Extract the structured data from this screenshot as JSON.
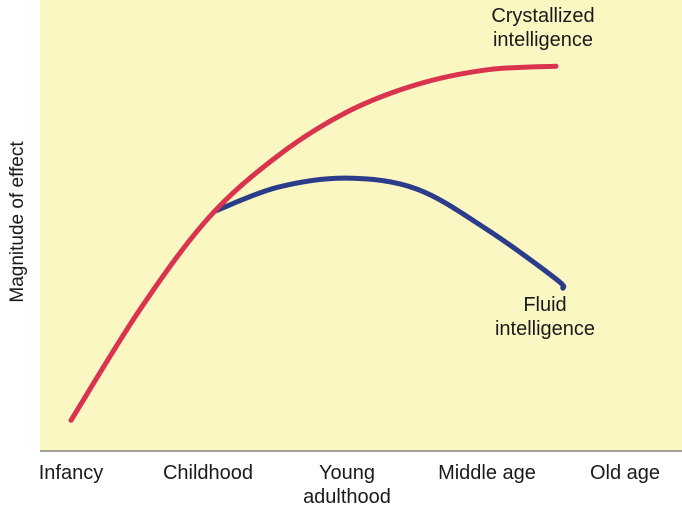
{
  "chart_data": {
    "type": "line",
    "title": "",
    "xlabel": "",
    "ylabel": "Magnitude of effect",
    "categories": [
      "Infancy",
      "Childhood",
      "Young adulthood",
      "Middle age",
      "Old age"
    ],
    "category_lines": [
      [
        "Infancy"
      ],
      [
        "Childhood"
      ],
      [
        "Young",
        "adulthood"
      ],
      [
        "Middle age"
      ],
      [
        "Old age"
      ]
    ],
    "x_range": [
      0,
      4
    ],
    "ylim": [
      0,
      100
    ],
    "grid": false,
    "legend": "none",
    "plot_background": "#fbf7c3",
    "series": [
      {
        "name": "Crystallized intelligence",
        "label_lines": [
          "Crystallized",
          "intelligence"
        ],
        "color": "#d9334d",
        "points": [
          [
            0,
            4
          ],
          [
            0.5,
            34
          ],
          [
            1,
            59
          ],
          [
            1.5,
            76
          ],
          [
            2,
            88
          ],
          [
            2.5,
            95.5
          ],
          [
            3,
            99.5
          ],
          [
            3.5,
            100.5
          ]
        ]
      },
      {
        "name": "Fluid intelligence",
        "label_lines": [
          "Fluid",
          "intelligence"
        ],
        "color": "#2b3c8a",
        "points": [
          [
            1.05,
            61
          ],
          [
            1.5,
            67.5
          ],
          [
            2,
            70
          ],
          [
            2.5,
            67
          ],
          [
            3,
            56
          ],
          [
            3.5,
            42.5
          ],
          [
            3.55,
            40
          ]
        ]
      }
    ]
  }
}
